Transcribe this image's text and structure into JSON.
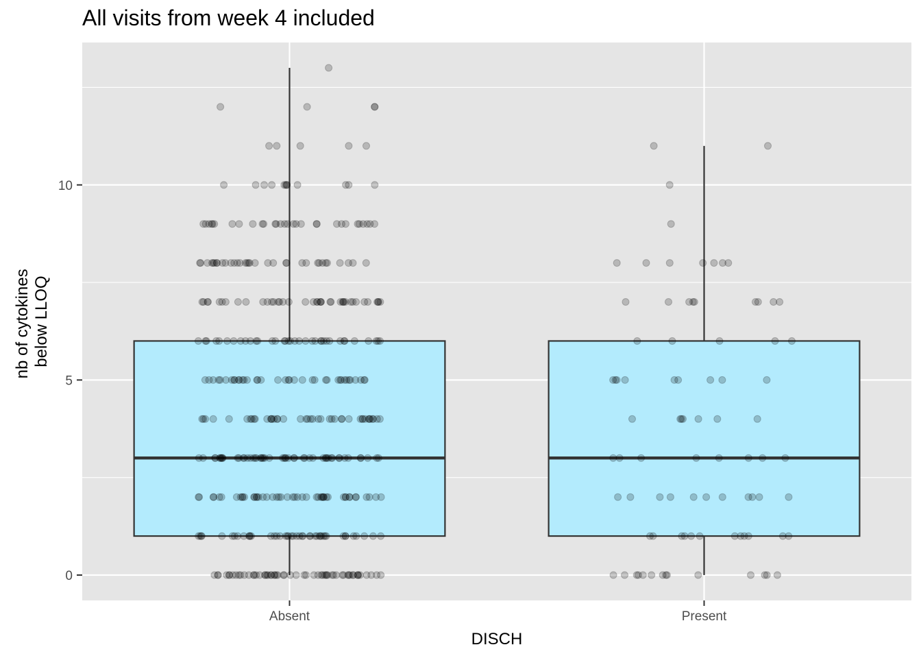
{
  "chart_data": {
    "type": "box",
    "title": "All visits from week 4 included",
    "xlabel": "DISCH",
    "ylabel": [
      "nb of cytokines",
      "below LLOQ"
    ],
    "categories": [
      "Absent",
      "Present"
    ],
    "ylim": [
      -0.65,
      13.65
    ],
    "yticks": [
      0,
      5,
      10
    ],
    "grid": true,
    "colors": {
      "panel": "#e5e5e5",
      "grid": "#ffffff",
      "box_fill": "#b3ebfd",
      "box_line": "#333333",
      "point": "#000000"
    },
    "boxes": [
      {
        "name": "Absent",
        "min": 0,
        "q1": 1,
        "median": 3,
        "q3": 6,
        "max": 13,
        "points": [
          {
            "y": 0,
            "n": 58
          },
          {
            "y": 1,
            "n": 44
          },
          {
            "y": 2,
            "n": 48
          },
          {
            "y": 3,
            "n": 52
          },
          {
            "y": 4,
            "n": 42
          },
          {
            "y": 5,
            "n": 38
          },
          {
            "y": 6,
            "n": 36
          },
          {
            "y": 7,
            "n": 40
          },
          {
            "y": 8,
            "n": 34
          },
          {
            "y": 9,
            "n": 30
          },
          {
            "y": 10,
            "n": 12
          },
          {
            "y": 11,
            "n": 5
          },
          {
            "y": 12,
            "n": 4
          },
          {
            "y": 13,
            "n": 1
          }
        ]
      },
      {
        "name": "Present",
        "min": 0,
        "q1": 1,
        "median": 3,
        "q3": 6,
        "max": 11,
        "points": [
          {
            "y": 0,
            "n": 14
          },
          {
            "y": 1,
            "n": 12
          },
          {
            "y": 2,
            "n": 11
          },
          {
            "y": 3,
            "n": 8
          },
          {
            "y": 4,
            "n": 7
          },
          {
            "y": 5,
            "n": 9
          },
          {
            "y": 6,
            "n": 5
          },
          {
            "y": 7,
            "n": 9
          },
          {
            "y": 8,
            "n": 7
          },
          {
            "y": 9,
            "n": 1
          },
          {
            "y": 10,
            "n": 1
          },
          {
            "y": 11,
            "n": 2
          }
        ]
      }
    ]
  }
}
